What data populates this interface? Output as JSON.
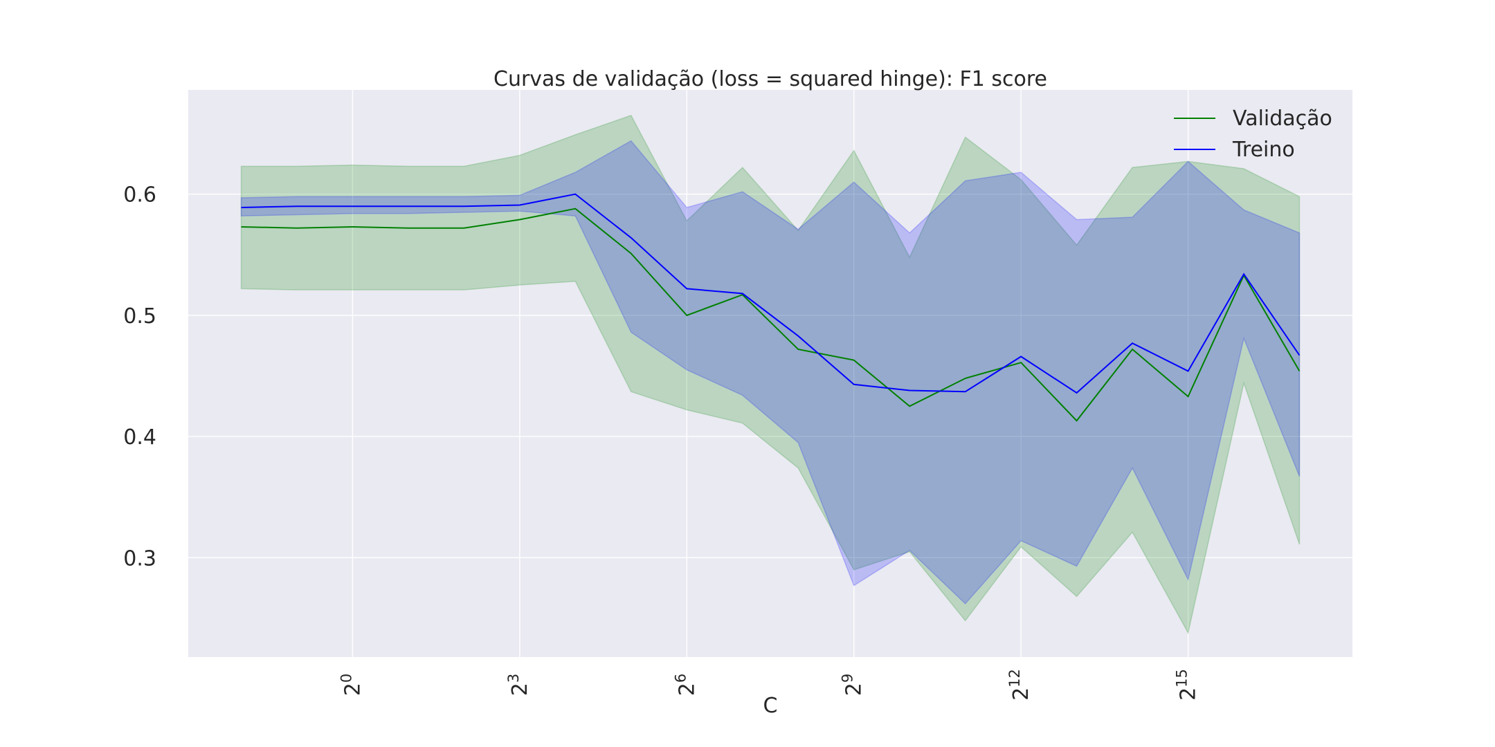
{
  "chart_data": {
    "type": "line",
    "title": "Curvas de validação (loss = squared hinge): F1 score",
    "xlabel": "C",
    "ylabel": "",
    "x_scale": "log2",
    "x_exponents": [
      -2,
      -1,
      0,
      1,
      2,
      3,
      4,
      5,
      6,
      7,
      8,
      9,
      10,
      11,
      12,
      13,
      14,
      15,
      16,
      17
    ],
    "x_ticks": [
      {
        "base": "2",
        "exp": "0",
        "value": 0
      },
      {
        "base": "2",
        "exp": "3",
        "value": 3
      },
      {
        "base": "2",
        "exp": "6",
        "value": 6
      },
      {
        "base": "2",
        "exp": "9",
        "value": 9
      },
      {
        "base": "2",
        "exp": "12",
        "value": 12
      },
      {
        "base": "2",
        "exp": "15",
        "value": 15
      }
    ],
    "y_ticks": [
      {
        "label": "0.3",
        "value": 0.3
      },
      {
        "label": "0.4",
        "value": 0.4
      },
      {
        "label": "0.5",
        "value": 0.5
      },
      {
        "label": "0.6",
        "value": 0.6
      }
    ],
    "xlim": [
      -2.95,
      17.95
    ],
    "ylim": [
      0.218,
      0.686
    ],
    "grid": true,
    "legend_position": "top-right",
    "series": [
      {
        "name": "Validação",
        "color": "#008000",
        "mean": [
          0.573,
          0.572,
          0.573,
          0.572,
          0.572,
          0.579,
          0.588,
          0.551,
          0.5,
          0.517,
          0.472,
          0.463,
          0.425,
          0.448,
          0.461,
          0.413,
          0.472,
          0.433,
          0.533,
          0.454
        ],
        "upper": [
          0.623,
          0.623,
          0.624,
          0.623,
          0.623,
          0.632,
          0.649,
          0.665,
          0.578,
          0.622,
          0.57,
          0.636,
          0.548,
          0.647,
          0.612,
          0.558,
          0.622,
          0.627,
          0.621,
          0.598
        ],
        "lower": [
          0.522,
          0.521,
          0.521,
          0.521,
          0.521,
          0.525,
          0.528,
          0.437,
          0.422,
          0.411,
          0.374,
          0.29,
          0.305,
          0.248,
          0.309,
          0.268,
          0.321,
          0.238,
          0.444,
          0.311
        ]
      },
      {
        "name": "Treino",
        "color": "#0000ff",
        "mean": [
          0.589,
          0.59,
          0.59,
          0.59,
          0.59,
          0.591,
          0.6,
          0.564,
          0.522,
          0.518,
          0.483,
          0.443,
          0.438,
          0.437,
          0.466,
          0.436,
          0.477,
          0.454,
          0.534,
          0.467
        ],
        "upper": [
          0.597,
          0.598,
          0.598,
          0.598,
          0.598,
          0.599,
          0.618,
          0.644,
          0.589,
          0.602,
          0.571,
          0.61,
          0.568,
          0.611,
          0.618,
          0.579,
          0.581,
          0.627,
          0.587,
          0.568
        ],
        "lower": [
          0.582,
          0.583,
          0.584,
          0.584,
          0.585,
          0.586,
          0.582,
          0.486,
          0.455,
          0.434,
          0.395,
          0.277,
          0.306,
          0.262,
          0.314,
          0.293,
          0.374,
          0.282,
          0.481,
          0.367
        ]
      }
    ]
  }
}
